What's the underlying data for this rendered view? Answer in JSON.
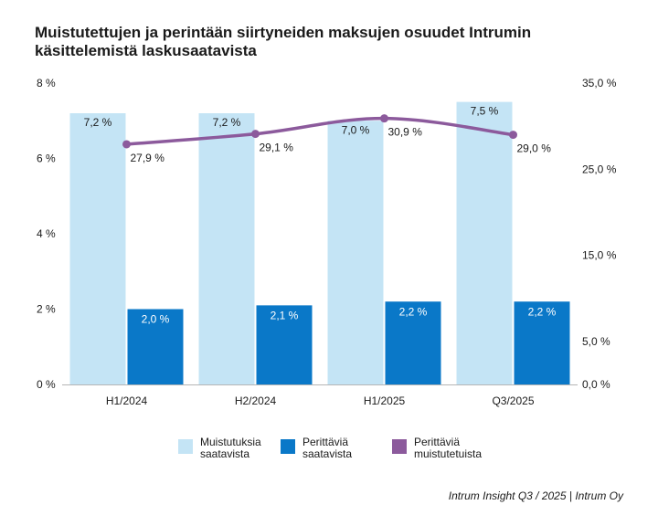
{
  "title": "Muistutettujen ja perintään siirtyneiden maksujen osuudet Intrumin käsittelemistä laskusaatavista",
  "source": "Intrum Insight Q3 / 2025 | Intrum Oy",
  "colors": {
    "light_bar": "#c4e4f5",
    "dark_bar": "#0a78c8",
    "line": "#8c5a9c",
    "axis": "#b5b5b5"
  },
  "legend": [
    {
      "label": "Muistutuksia saatavista",
      "color": "#c4e4f5"
    },
    {
      "label": "Perittäviä saatavista",
      "color": "#0a78c8"
    },
    {
      "label": "Perittäviä muistutetuista",
      "color": "#8c5a9c"
    }
  ],
  "chart_data": {
    "type": "bar",
    "categories": [
      "H1/2024",
      "H2/2024",
      "H1/2025",
      "Q3/2025"
    ],
    "series": [
      {
        "name": "Muistutuksia saatavista",
        "type": "bar",
        "axis": "left",
        "values": [
          7.2,
          7.2,
          7.0,
          7.5
        ],
        "labels": [
          "7,2 %",
          "7,2 %",
          "7,0 %",
          "7,5 %"
        ]
      },
      {
        "name": "Perittäviä saatavista",
        "type": "bar",
        "axis": "left",
        "values": [
          2.0,
          2.1,
          2.2,
          2.2
        ],
        "labels": [
          "2,0 %",
          "2,1 %",
          "2,2 %",
          "2,2 %"
        ]
      },
      {
        "name": "Perittäviä muistutetuista",
        "type": "line",
        "axis": "right",
        "values": [
          27.9,
          29.1,
          30.9,
          29.0
        ],
        "labels": [
          "27,9 %",
          "29,1 %",
          "30,9 %",
          "29,0 %"
        ]
      }
    ],
    "left_axis": {
      "ylim": [
        0,
        8
      ],
      "ticks": [
        0,
        2,
        4,
        6,
        8
      ],
      "tick_labels": [
        "0 %",
        "2 %",
        "4 %",
        "6 %",
        "8 %"
      ]
    },
    "right_axis": {
      "ylim": [
        0,
        35
      ],
      "ticks": [
        0,
        5,
        15,
        25,
        35
      ],
      "tick_labels": [
        "0,0 %",
        "5,0 %",
        "15,0 %",
        "25,0 %",
        "35,0 %"
      ]
    },
    "grid": false,
    "legend_position": "bottom"
  }
}
